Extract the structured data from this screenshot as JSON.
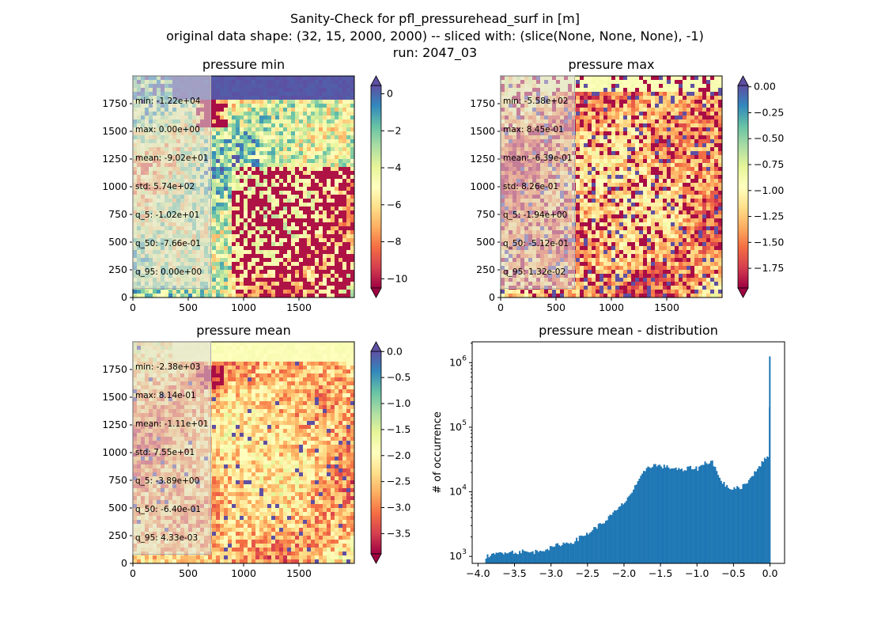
{
  "suptitle": {
    "line1": "Sanity-Check for pfl_pressurehead_surf in [m]",
    "line2": "original data shape: (32, 15, 2000, 2000) -- sliced with: (slice(None, None, None), -1)",
    "line3": "run: 2047_03"
  },
  "panels": [
    {
      "title": "pressure min",
      "stats": [
        "min: -1.22e+04",
        "max: 0.00e+00",
        "mean: -9.02e+01",
        "std: 5.74e+02",
        "q_5: -1.02e+01",
        "q_50: -7.66e-01",
        "q_95: 0.00e+00"
      ],
      "axis_ticks": [
        "0",
        "250",
        "500",
        "750",
        "1000",
        "1250",
        "1500",
        "1750"
      ],
      "x_ticks": [
        "0",
        "500",
        "1000",
        "1500"
      ],
      "colorbar": {
        "vmin": -10.5,
        "vmax": 0.45,
        "ticks": [
          0,
          -2,
          -4,
          -6,
          -8,
          -10
        ],
        "tick_labels": [
          "0",
          "−2",
          "−4",
          "−6",
          "−8",
          "−10"
        ],
        "extend_top_color": "#5e4fa2",
        "extend_bottom_color": "#9e0142"
      }
    },
    {
      "title": "pressure max",
      "stats": [
        "min: -5.58e+02",
        "max: 8.45e-01",
        "mean: -6.39e-01",
        "std: 8.26e-01",
        "q_5: -1.94e+00",
        "q_50: -5.12e-01",
        "q_95: 1.32e-02"
      ],
      "axis_ticks": [
        "0",
        "250",
        "500",
        "750",
        "1000",
        "1250",
        "1500",
        "1750"
      ],
      "x_ticks": [
        "0",
        "500",
        "1000",
        "1500"
      ],
      "colorbar": {
        "vmin": -1.94,
        "vmax": 0.013,
        "ticks": [
          0,
          -0.25,
          -0.5,
          -0.75,
          -1.0,
          -1.25,
          -1.5,
          -1.75
        ],
        "tick_labels": [
          "0.00",
          "−0.25",
          "−0.50",
          "−0.75",
          "−1.00",
          "−1.25",
          "−1.50",
          "−1.75"
        ],
        "extend_top_color": "#5e4fa2",
        "extend_bottom_color": "#9e0142"
      }
    },
    {
      "title": "pressure mean",
      "stats": [
        "min: -2.38e+03",
        "max: 8.14e-01",
        "mean: -1.11e+01",
        "std: 7.55e+01",
        "q_5: -3.89e+00",
        "q_50: -6.40e-01",
        "q_95: 4.33e-03"
      ],
      "axis_ticks": [
        "0",
        "250",
        "500",
        "750",
        "1000",
        "1250",
        "1500",
        "1750"
      ],
      "x_ticks": [
        "0",
        "500",
        "1000",
        "1500"
      ],
      "colorbar": {
        "vmin": -3.89,
        "vmax": 0.0043,
        "ticks": [
          0,
          -0.5,
          -1.0,
          -1.5,
          -2.0,
          -2.5,
          -3.0,
          -3.5
        ],
        "tick_labels": [
          "0.0",
          "−0.5",
          "−1.0",
          "−1.5",
          "−2.0",
          "−2.5",
          "−3.0",
          "−3.5"
        ],
        "extend_top_color": "#5e4fa2",
        "extend_bottom_color": "#9e0142"
      }
    }
  ],
  "chart_data": {
    "type": "bar",
    "title": "pressure mean - distribution",
    "xlabel": "",
    "ylabel": "# of occurrence",
    "yscale": "log",
    "xlim": [
      -4.08,
      0.2
    ],
    "ylim": [
      780,
      2100000
    ],
    "x_ticks": [
      -4.0,
      -3.5,
      -3.0,
      -2.5,
      -2.0,
      -1.5,
      -1.0,
      -0.5,
      0.0
    ],
    "x_tick_labels": [
      "−4.0",
      "−3.5",
      "−3.0",
      "−2.5",
      "−2.0",
      "−1.5",
      "−1.0",
      "−0.5",
      "0.0"
    ],
    "y_ticks": [
      1000,
      10000,
      100000,
      1000000
    ],
    "y_tick_labels": [
      "10",
      "10",
      "10",
      "10"
    ],
    "y_tick_exponents": [
      "3",
      "4",
      "5",
      "6"
    ],
    "bar_color": "#1f77b4",
    "bins": [
      {
        "x": -3.9,
        "y": 1000
      },
      {
        "x": -3.8,
        "y": 1050
      },
      {
        "x": -3.7,
        "y": 1150
      },
      {
        "x": -3.6,
        "y": 1200
      },
      {
        "x": -3.5,
        "y": 1150
      },
      {
        "x": -3.4,
        "y": 1200
      },
      {
        "x": -3.3,
        "y": 1150
      },
      {
        "x": -3.2,
        "y": 1200
      },
      {
        "x": -3.1,
        "y": 1300
      },
      {
        "x": -3.0,
        "y": 1350
      },
      {
        "x": -2.9,
        "y": 1550
      },
      {
        "x": -2.8,
        "y": 1600
      },
      {
        "x": -2.7,
        "y": 1700
      },
      {
        "x": -2.6,
        "y": 2000
      },
      {
        "x": -2.5,
        "y": 2300
      },
      {
        "x": -2.4,
        "y": 2800
      },
      {
        "x": -2.3,
        "y": 3300
      },
      {
        "x": -2.2,
        "y": 4200
      },
      {
        "x": -2.1,
        "y": 5300
      },
      {
        "x": -2.0,
        "y": 7000
      },
      {
        "x": -1.9,
        "y": 10000
      },
      {
        "x": -1.8,
        "y": 15000
      },
      {
        "x": -1.7,
        "y": 24000
      },
      {
        "x": -1.6,
        "y": 26000
      },
      {
        "x": -1.5,
        "y": 25000
      },
      {
        "x": -1.4,
        "y": 24000
      },
      {
        "x": -1.3,
        "y": 23000
      },
      {
        "x": -1.2,
        "y": 21000
      },
      {
        "x": -1.1,
        "y": 24000
      },
      {
        "x": -1.0,
        "y": 23000
      },
      {
        "x": -0.9,
        "y": 28000
      },
      {
        "x": -0.8,
        "y": 30000
      },
      {
        "x": -0.7,
        "y": 16000
      },
      {
        "x": -0.6,
        "y": 12000
      },
      {
        "x": -0.5,
        "y": 11000
      },
      {
        "x": -0.4,
        "y": 12000
      },
      {
        "x": -0.3,
        "y": 15000
      },
      {
        "x": -0.2,
        "y": 22000
      },
      {
        "x": -0.1,
        "y": 30000
      },
      {
        "x": -0.03,
        "y": 36000
      },
      {
        "x": 0.0,
        "y": 1250000
      }
    ]
  }
}
